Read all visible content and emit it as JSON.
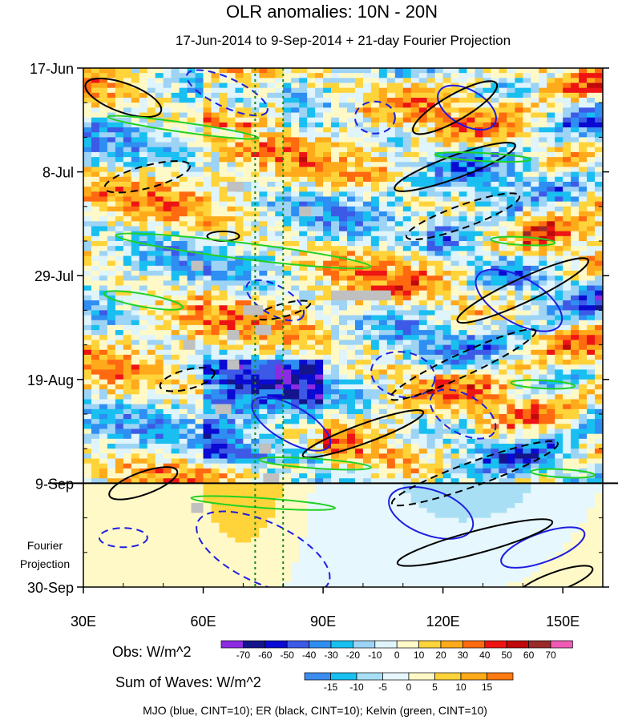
{
  "chart_data": {
    "type": "heatmap",
    "title": "OLR anomalies: 10N - 20N",
    "subtitle": "17-Jun-2014 to 9-Sep-2014 + 21-day Fourier Projection",
    "x_ticks": [
      "30E",
      "60E",
      "90E",
      "120E",
      "150E"
    ],
    "x_tick_values": [
      30,
      60,
      90,
      120,
      150
    ],
    "xlim": [
      30,
      160
    ],
    "y_ticks": [
      "17-Jun",
      "8-Jul",
      "29-Jul",
      "19-Aug",
      "9-Sep",
      "30-Sep"
    ],
    "y_tick_values": [
      "2014-06-17",
      "2014-07-08",
      "2014-07-29",
      "2014-08-19",
      "2014-09-09",
      "2014-09-30"
    ],
    "ylim": [
      "2014-06-17",
      "2014-09-30"
    ],
    "y_reversed": true,
    "observation_end": "2014-09-09",
    "projection_label": "Fourier\nProjection",
    "reference_longitudes": [
      73,
      80
    ],
    "obs_colorbar": {
      "title": "Obs: W/m^2",
      "levels": [
        -70,
        -60,
        -50,
        -40,
        -30,
        -20,
        -10,
        0,
        10,
        20,
        30,
        40,
        50,
        60,
        70
      ],
      "level_labels": [
        "-70",
        "-60",
        "-50",
        "-40",
        "-30",
        "-20",
        "-10",
        "0",
        "10",
        "20",
        "30",
        "40",
        "50",
        "60",
        "70"
      ],
      "colors": [
        "#8c2be2",
        "#14148c",
        "#0a0ad2",
        "#3c5ae6",
        "#2e8ef2",
        "#18bff0",
        "#9dd3f5",
        "#dff4fb",
        "#fff9c8",
        "#ffd33a",
        "#ffaa1a",
        "#ff6a10",
        "#ee1414",
        "#be0a0a",
        "#9a2a2a",
        "#f05ab4"
      ]
    },
    "wave_colorbar": {
      "title": "Sum of Waves: W/m^2",
      "levels": [
        -15,
        -10,
        -5,
        0,
        5,
        10,
        15
      ],
      "level_labels": [
        "-15",
        "-10",
        "-5",
        "0",
        "5",
        "10",
        "15"
      ],
      "colors": [
        "#3c8cf0",
        "#18bff0",
        "#a8dff5",
        "#e6f7fd",
        "#fff9c8",
        "#ffd33a",
        "#ffaa1a",
        "#ff7a10"
      ]
    },
    "overlay_series": [
      {
        "name": "MJO",
        "color": "#1e1ee0",
        "cint": 10
      },
      {
        "name": "ER",
        "color": "#000000",
        "cint": 10
      },
      {
        "name": "Kelvin",
        "color": "#22d122",
        "cint": 10
      }
    ],
    "footnote": "MJO (blue, CINT=10); ER (black, CINT=10); Kelvin (green, CINT=10)"
  }
}
